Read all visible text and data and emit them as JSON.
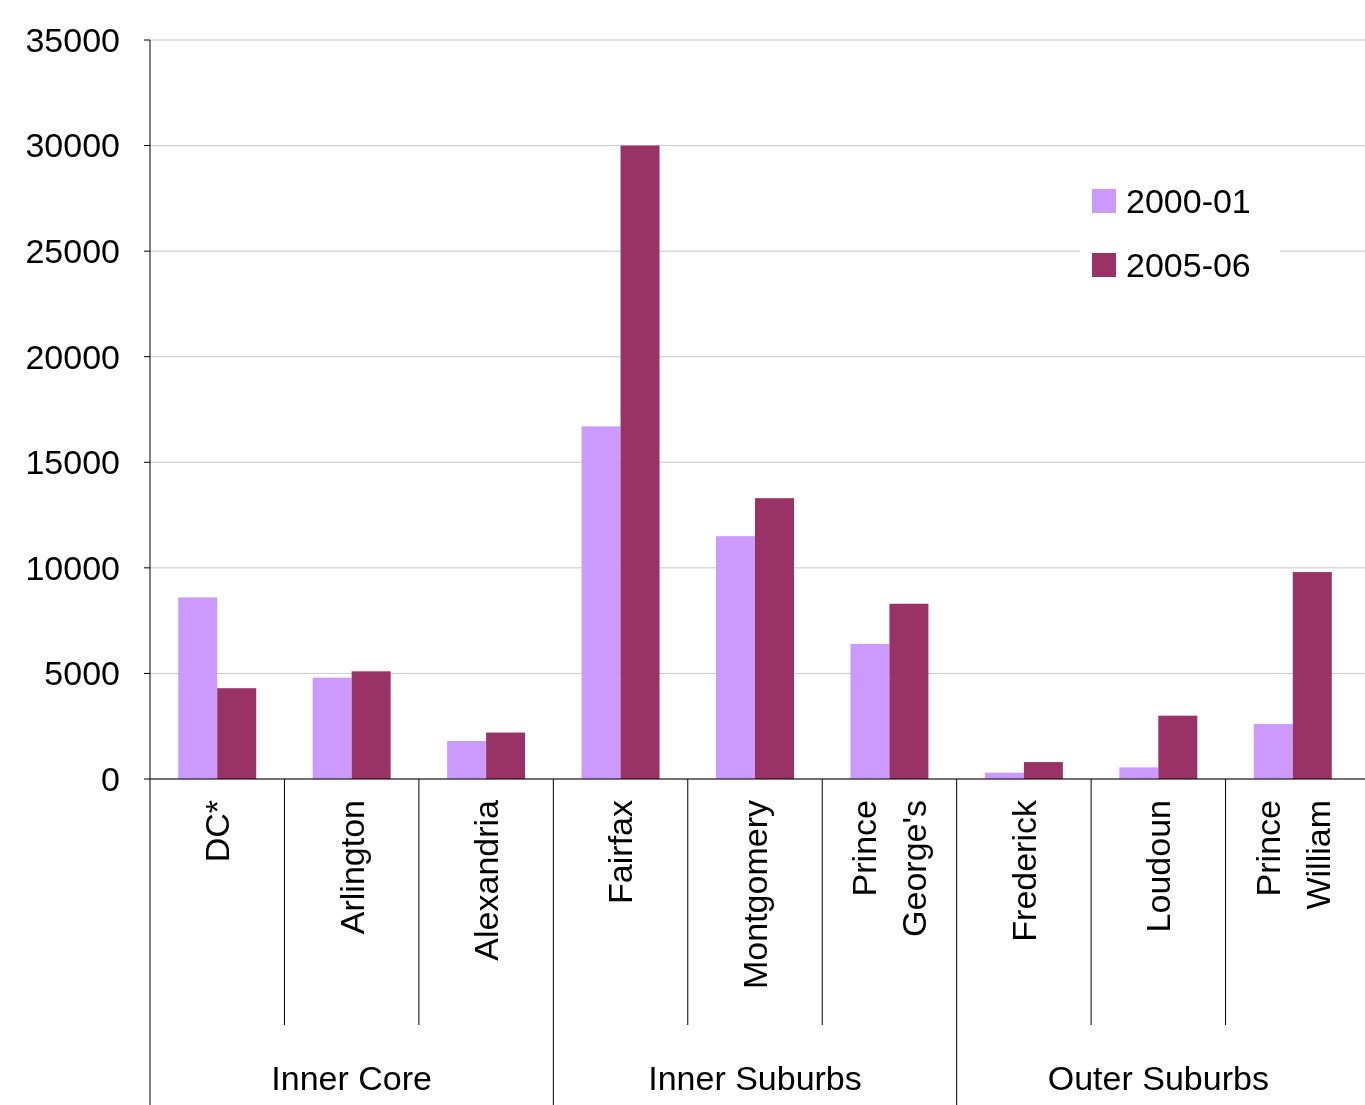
{
  "chart_data": {
    "type": "bar",
    "categories": [
      "DC*",
      "Arlington",
      "Alexandria",
      "Fairfax",
      "Montgomery",
      "Prince George's",
      "Frederick",
      "Loudoun",
      "Prince William"
    ],
    "series": [
      {
        "name": "2000-01",
        "color": "#cc99ff",
        "values": [
          8600,
          4800,
          1800,
          16700,
          11500,
          6400,
          300,
          550,
          2600
        ]
      },
      {
        "name": "2005-06",
        "color": "#993366",
        "values": [
          4300,
          5100,
          2200,
          30000,
          13300,
          8300,
          800,
          3000,
          9800
        ]
      }
    ],
    "ylim": [
      0,
      35000
    ],
    "yticks": [
      0,
      5000,
      10000,
      15000,
      20000,
      25000,
      30000,
      35000
    ],
    "grid": "y",
    "legend": "top right",
    "annotations": [
      "Inner Core",
      "Inner Suburbs",
      "Outer Suburbs"
    ]
  }
}
